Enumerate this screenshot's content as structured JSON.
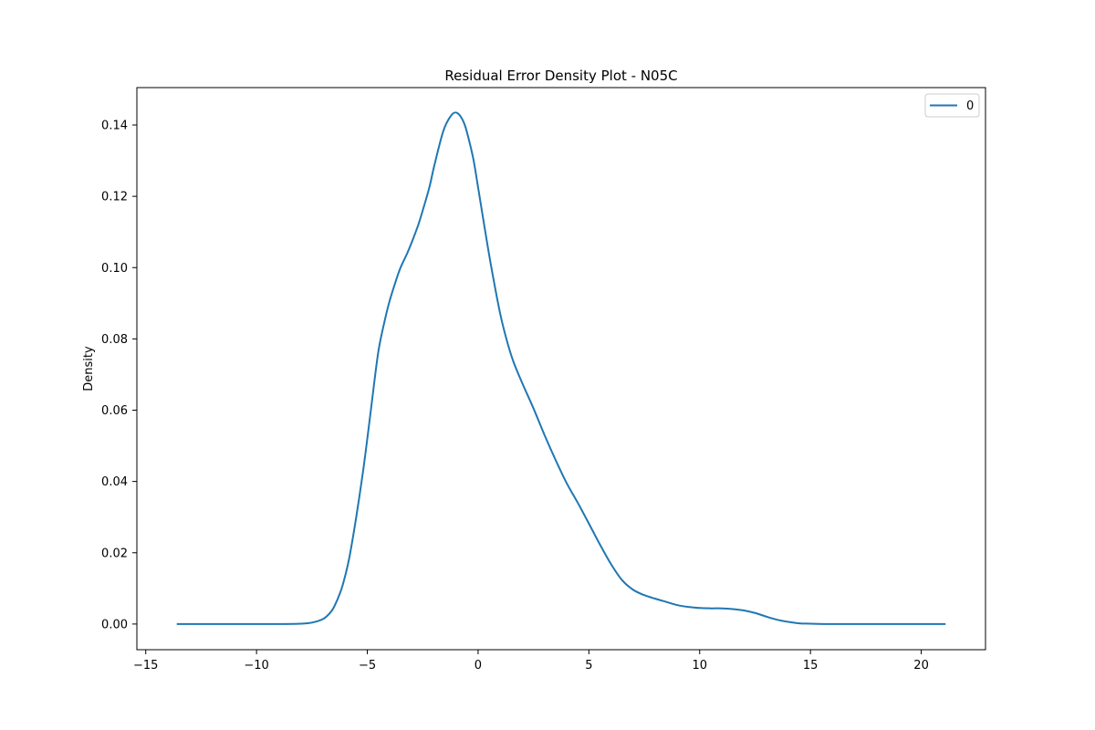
{
  "chart_data": {
    "type": "line",
    "title": "Residual Error Density Plot - N05C",
    "xlabel": "",
    "ylabel": "Density",
    "xlim": [
      -15.4,
      22.9
    ],
    "ylim": [
      -0.0072,
      0.1505
    ],
    "xticks": [
      -15,
      -10,
      -5,
      0,
      5,
      10,
      15,
      20
    ],
    "xtick_labels": [
      "−15",
      "−10",
      "−5",
      "0",
      "5",
      "10",
      "15",
      "20"
    ],
    "yticks": [
      0.0,
      0.02,
      0.04,
      0.06,
      0.08,
      0.1,
      0.12,
      0.14
    ],
    "ytick_labels": [
      "0.00",
      "0.02",
      "0.04",
      "0.06",
      "0.08",
      "0.10",
      "0.12",
      "0.14"
    ],
    "grid": false,
    "legend_position": "top-right",
    "series": [
      {
        "name": "0",
        "color": "#1f77b4",
        "x": [
          -13.6,
          -12,
          -10,
          -9,
          -8,
          -7.5,
          -7,
          -6.7,
          -6.5,
          -6.2,
          -6,
          -5.8,
          -5.5,
          -5.2,
          -5,
          -4.8,
          -4.5,
          -4.2,
          -4,
          -3.7,
          -3.5,
          -3.2,
          -3,
          -2.7,
          -2.5,
          -2.2,
          -2,
          -1.7,
          -1.5,
          -1.2,
          -1,
          -0.8,
          -0.6,
          -0.4,
          -0.2,
          0,
          0.3,
          0.6,
          1,
          1.3,
          1.6,
          2,
          2.5,
          3,
          3.5,
          4,
          4.5,
          5,
          5.5,
          6,
          6.5,
          7,
          7.5,
          8,
          8.5,
          9,
          9.5,
          10,
          10.5,
          11,
          11.5,
          12,
          12.5,
          13,
          13.5,
          14,
          14.5,
          15,
          16,
          18,
          21.1
        ],
        "y": [
          0.0,
          0.0,
          0.0,
          0.0,
          0.0001,
          0.0004,
          0.0014,
          0.003,
          0.0048,
          0.0092,
          0.0135,
          0.019,
          0.03,
          0.0425,
          0.052,
          0.062,
          0.0765,
          0.0855,
          0.0905,
          0.0965,
          0.1,
          0.104,
          0.107,
          0.112,
          0.116,
          0.1225,
          0.128,
          0.1355,
          0.1395,
          0.1428,
          0.1435,
          0.1425,
          0.14,
          0.1355,
          0.13,
          0.1225,
          0.111,
          0.1,
          0.087,
          0.0795,
          0.0735,
          0.0675,
          0.0605,
          0.053,
          0.046,
          0.0395,
          0.034,
          0.0282,
          0.0223,
          0.0168,
          0.0123,
          0.0096,
          0.0081,
          0.0071,
          0.0062,
          0.0053,
          0.0048,
          0.0045,
          0.0044,
          0.0044,
          0.0042,
          0.0038,
          0.0031,
          0.0021,
          0.0012,
          0.0006,
          0.0002,
          0.0001,
          0.0,
          0.0,
          0.0
        ]
      }
    ]
  }
}
